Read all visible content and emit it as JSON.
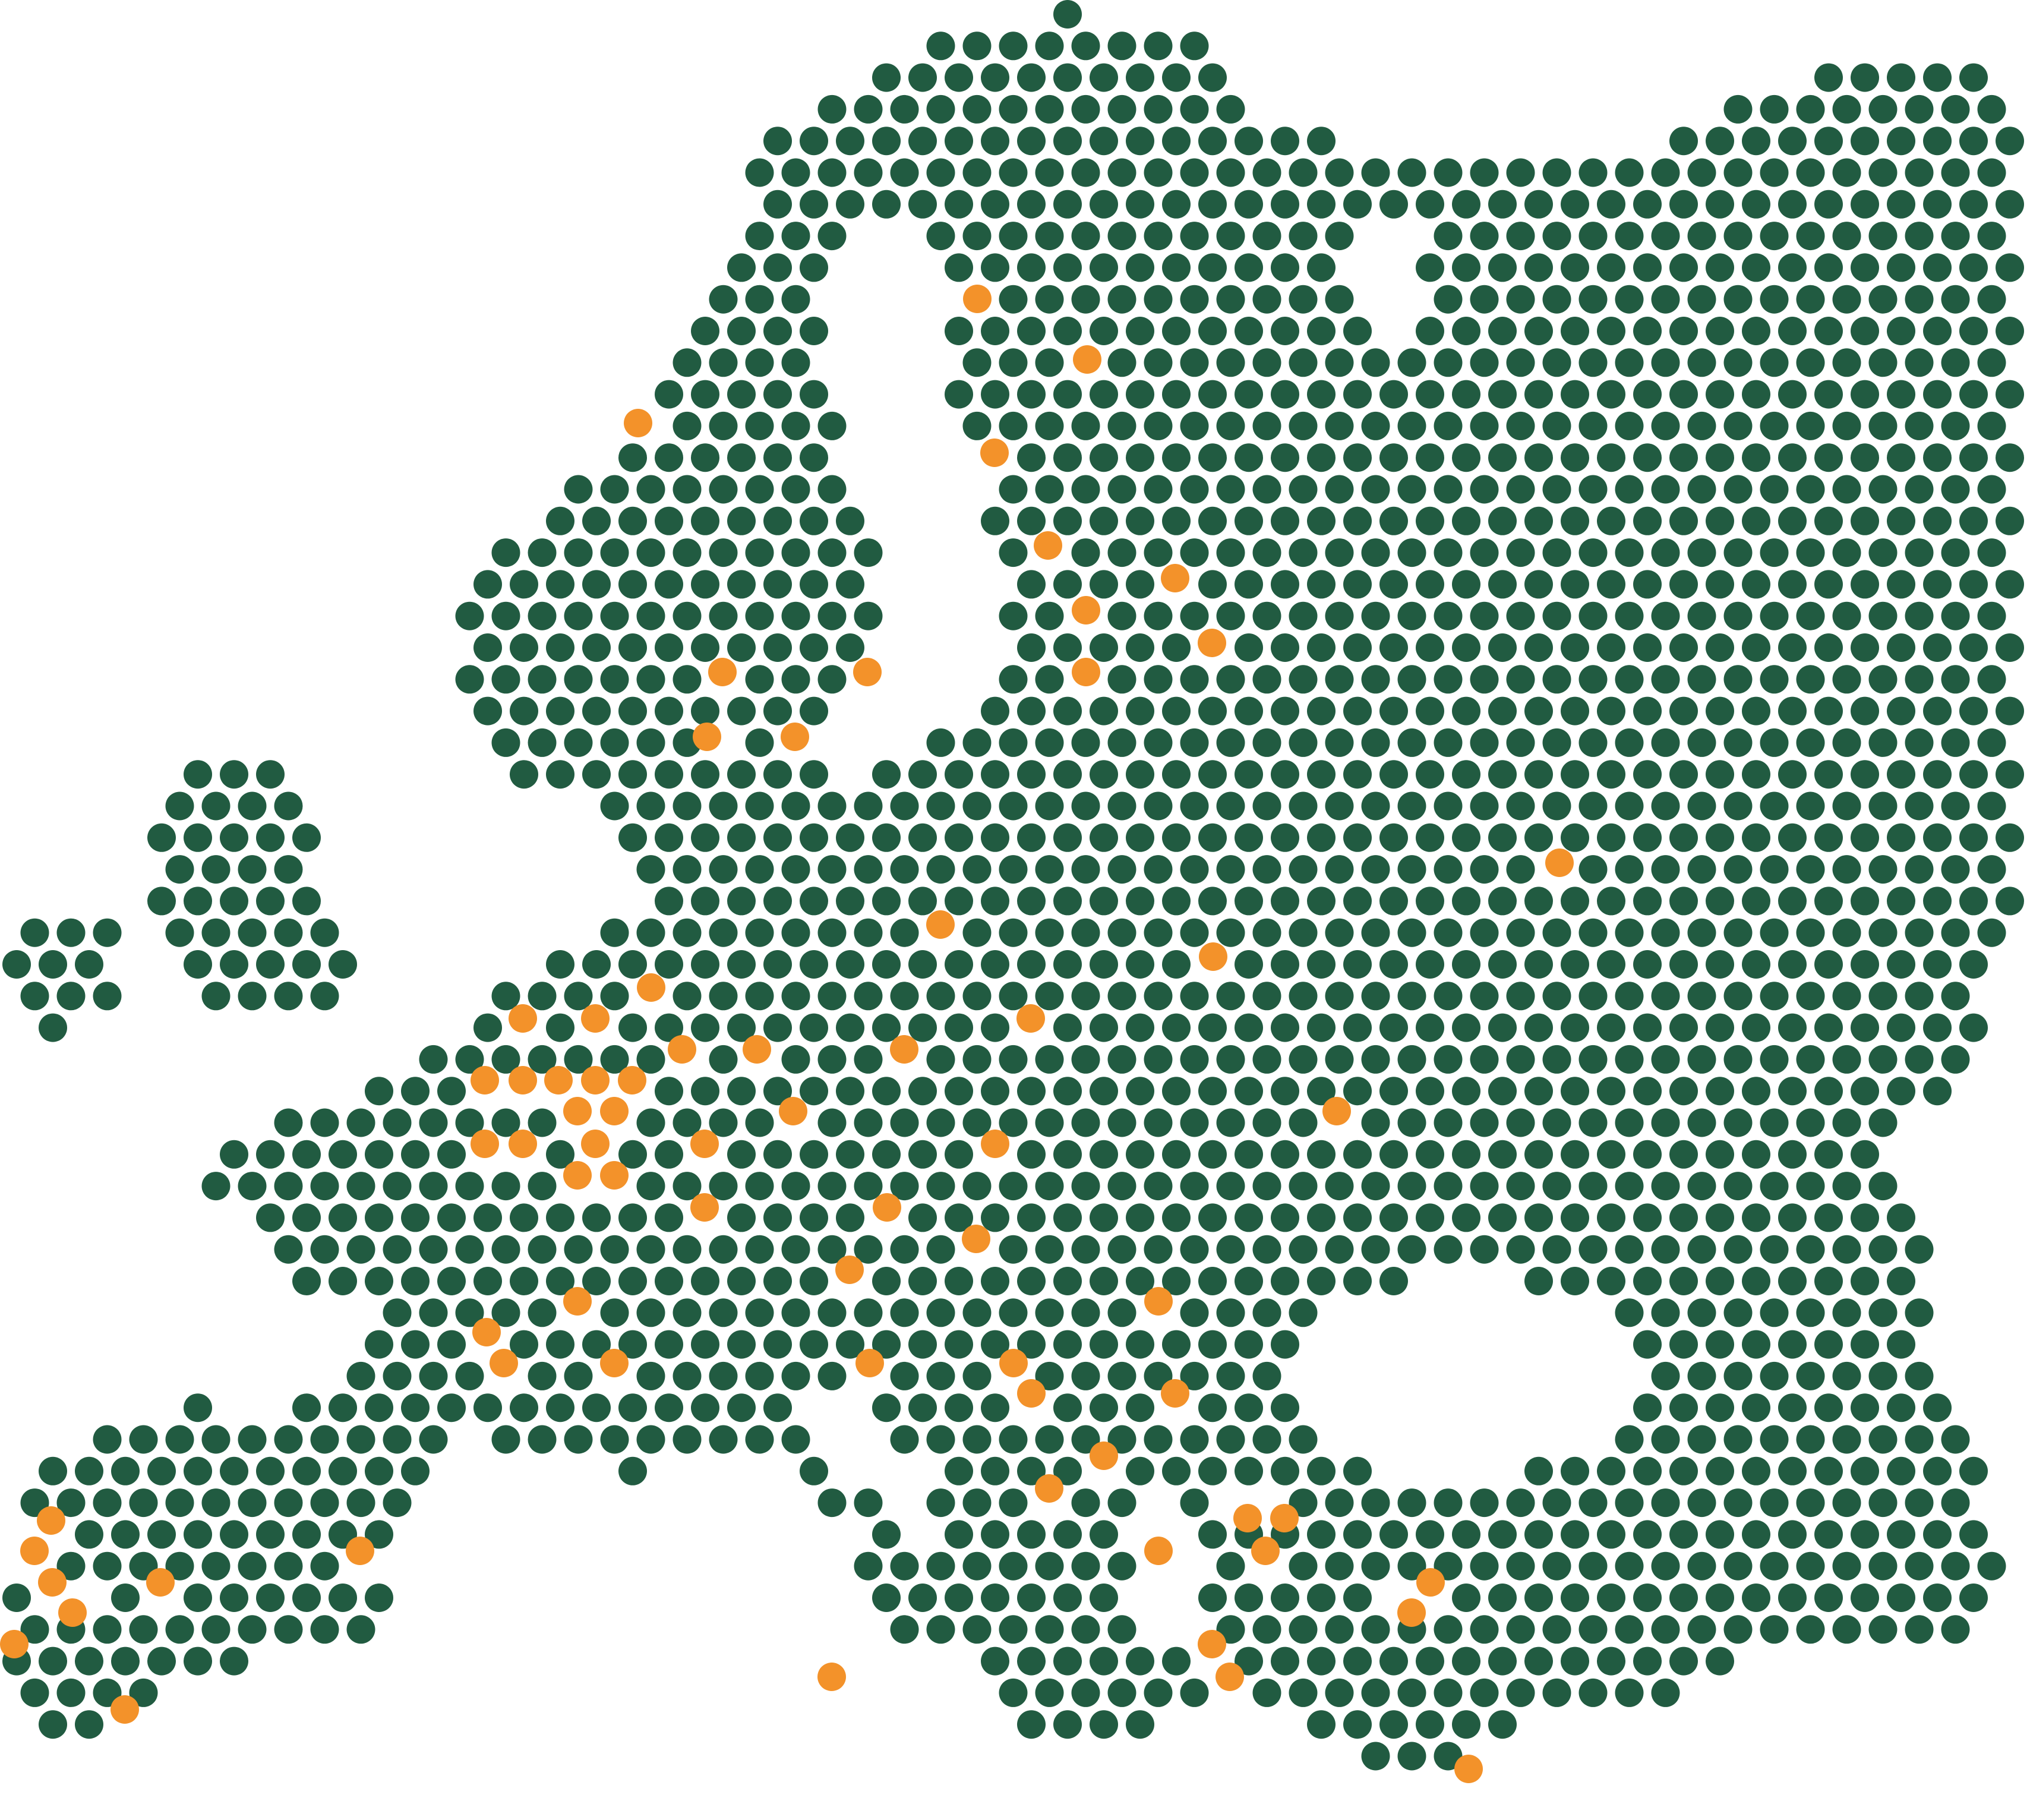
{
  "map": {
    "style": "dot-grid",
    "colors": {
      "land": "#215b41",
      "marker": "#f3922a",
      "background": "#ffffff"
    }
  }
}
